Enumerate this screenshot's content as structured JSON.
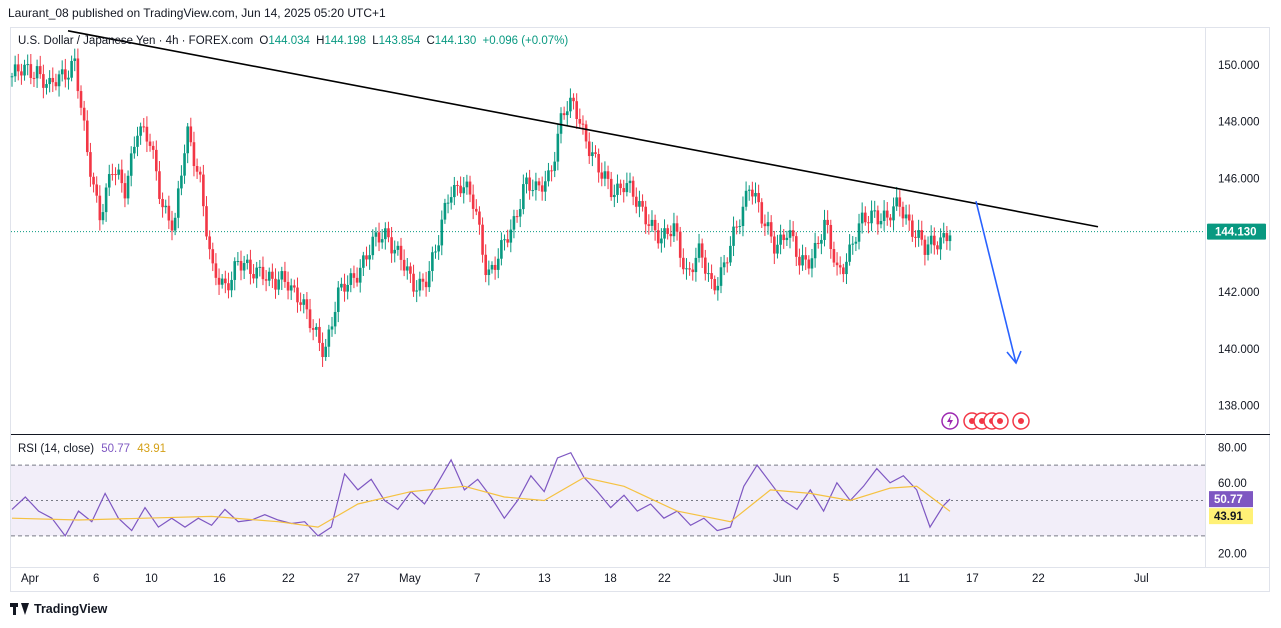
{
  "header": {
    "publisher_text": "Laurant_08 published on TradingView.com, Jun 14, 2025 05:20 UTC+1"
  },
  "symbol": {
    "name": "U.S. Dollar / Japanese Yen · 4h · FOREX.com",
    "o_label": "O",
    "o_value": "144.034",
    "h_label": "H",
    "h_value": "144.198",
    "l_label": "L",
    "l_value": "143.854",
    "c_label": "C",
    "c_value": "144.130",
    "change": "+0.096 (+0.07%)"
  },
  "rsi": {
    "name": "RSI (14, close)",
    "value": "50.77",
    "ma_value": "43.91"
  },
  "footer": {
    "brand": "TradingView"
  },
  "colors": {
    "up": "#089981",
    "down": "#f23645",
    "rsi": "#7e57c2",
    "rsi_ma": "#f5c242",
    "arrow": "#2962ff",
    "trendline": "#000000"
  },
  "chart_data": [
    {
      "type": "candlestick",
      "title": "U.S. Dollar / Japanese Yen · 4h · FOREX.com",
      "ylim": [
        137,
        151.3
      ],
      "y_ticks": [
        "150.000",
        "148.000",
        "146.000",
        "144.000",
        "142.000",
        "140.000",
        "138.000"
      ],
      "last_price_label": "144.130",
      "x_ticks": [
        "Apr",
        "6",
        "10",
        "16",
        "22",
        "27",
        "May",
        "7",
        "13",
        "18",
        "22",
        "Jun",
        "5",
        "11",
        "17",
        "22",
        "Jul"
      ],
      "price_path": [
        [
          0,
          149.6
        ],
        [
          2,
          149.9
        ],
        [
          3,
          149.1
        ],
        [
          5,
          150.2
        ],
        [
          6,
          146.8
        ],
        [
          7,
          144.8
        ],
        [
          8,
          146.3
        ],
        [
          9,
          145.5
        ],
        [
          10,
          147.9
        ],
        [
          11,
          147.2
        ],
        [
          12,
          145.2
        ],
        [
          13,
          144.3
        ],
        [
          14,
          147.6
        ],
        [
          15,
          146.2
        ],
        [
          16,
          142.6
        ],
        [
          17,
          142.2
        ],
        [
          18,
          143.1
        ],
        [
          19,
          142.6
        ],
        [
          20,
          142.9
        ],
        [
          21,
          142.2
        ],
        [
          22,
          142.4
        ],
        [
          23,
          141.9
        ],
        [
          24,
          140.6
        ],
        [
          25,
          140.0
        ],
        [
          26,
          141.8
        ],
        [
          27,
          142.3
        ],
        [
          28,
          143.1
        ],
        [
          29,
          143.7
        ],
        [
          30,
          144.1
        ],
        [
          31,
          143.3
        ],
        [
          32,
          142.1
        ],
        [
          33,
          142.5
        ],
        [
          34,
          143.5
        ],
        [
          35,
          145.6
        ],
        [
          36,
          145.9
        ],
        [
          37,
          144.9
        ],
        [
          38,
          142.7
        ],
        [
          39,
          143.3
        ],
        [
          40,
          144.2
        ],
        [
          41,
          146.0
        ],
        [
          42,
          145.4
        ],
        [
          43,
          146.2
        ],
        [
          44,
          148.3
        ],
        [
          45,
          148.5
        ],
        [
          46,
          147.4
        ],
        [
          47,
          146.1
        ],
        [
          48,
          145.6
        ],
        [
          49,
          145.9
        ],
        [
          50,
          145.0
        ],
        [
          51,
          144.6
        ],
        [
          52,
          143.7
        ],
        [
          53,
          144.3
        ],
        [
          54,
          142.6
        ],
        [
          55,
          143.3
        ],
        [
          56,
          142.3
        ],
        [
          57,
          142.9
        ],
        [
          58,
          144.3
        ],
        [
          59,
          146.0
        ],
        [
          60,
          144.4
        ],
        [
          61,
          143.7
        ],
        [
          62,
          144.2
        ],
        [
          63,
          142.9
        ],
        [
          64,
          143.4
        ],
        [
          65,
          144.3
        ],
        [
          66,
          142.7
        ],
        [
          67,
          143.5
        ],
        [
          68,
          144.4
        ],
        [
          69,
          144.9
        ],
        [
          70,
          144.5
        ],
        [
          71,
          145.1
        ],
        [
          72,
          144.3
        ],
        [
          73,
          143.4
        ],
        [
          74,
          143.9
        ],
        [
          75,
          144.13
        ]
      ],
      "trendline": {
        "from": [
          "Apr",
          151.2
        ],
        "to": [
          "Jun 22",
          144.3
        ]
      },
      "projection_arrow": {
        "from": [
          "Jun 17",
          145.2
        ],
        "to": [
          "Jun 19",
          139.5
        ]
      }
    },
    {
      "type": "line",
      "title": "RSI (14, close)",
      "ylim": [
        13,
        87
      ],
      "y_ticks": [
        "80.00",
        "60.00",
        "20.00"
      ],
      "bands": [
        70,
        50,
        30
      ],
      "rsi_path": [
        [
          0,
          45
        ],
        [
          2,
          52
        ],
        [
          4,
          44
        ],
        [
          6,
          40
        ],
        [
          8,
          30
        ],
        [
          10,
          44
        ],
        [
          12,
          38
        ],
        [
          14,
          54
        ],
        [
          16,
          40
        ],
        [
          18,
          33
        ],
        [
          20,
          46
        ],
        [
          22,
          35
        ],
        [
          24,
          40
        ],
        [
          26,
          35
        ],
        [
          28,
          40
        ],
        [
          30,
          36
        ],
        [
          32,
          45
        ],
        [
          34,
          38
        ],
        [
          36,
          39
        ],
        [
          38,
          42
        ],
        [
          40,
          39
        ],
        [
          42,
          37
        ],
        [
          44,
          38
        ],
        [
          46,
          30
        ],
        [
          48,
          35
        ],
        [
          50,
          65
        ],
        [
          52,
          56
        ],
        [
          54,
          62
        ],
        [
          56,
          50
        ],
        [
          58,
          45
        ],
        [
          60,
          55
        ],
        [
          62,
          48
        ],
        [
          64,
          60
        ],
        [
          66,
          73
        ],
        [
          68,
          56
        ],
        [
          70,
          62
        ],
        [
          72,
          52
        ],
        [
          74,
          40
        ],
        [
          76,
          50
        ],
        [
          78,
          64
        ],
        [
          80,
          55
        ],
        [
          82,
          74
        ],
        [
          84,
          77
        ],
        [
          86,
          63
        ],
        [
          88,
          55
        ],
        [
          90,
          46
        ],
        [
          92,
          53
        ],
        [
          94,
          44
        ],
        [
          96,
          48
        ],
        [
          98,
          40
        ],
        [
          100,
          44
        ],
        [
          102,
          36
        ],
        [
          104,
          40
        ],
        [
          106,
          33
        ],
        [
          108,
          35
        ],
        [
          110,
          58
        ],
        [
          112,
          70
        ],
        [
          114,
          60
        ],
        [
          116,
          50
        ],
        [
          118,
          45
        ],
        [
          120,
          56
        ],
        [
          122,
          44
        ],
        [
          124,
          60
        ],
        [
          126,
          50
        ],
        [
          128,
          58
        ],
        [
          130,
          68
        ],
        [
          132,
          60
        ],
        [
          134,
          64
        ],
        [
          136,
          56
        ],
        [
          138,
          35
        ],
        [
          140,
          47
        ],
        [
          141,
          50.77
        ]
      ],
      "rsi_ma_path": [
        [
          0,
          40
        ],
        [
          10,
          39
        ],
        [
          20,
          40
        ],
        [
          30,
          41
        ],
        [
          40,
          38
        ],
        [
          46,
          35
        ],
        [
          52,
          48
        ],
        [
          60,
          55
        ],
        [
          68,
          58
        ],
        [
          74,
          52
        ],
        [
          80,
          50
        ],
        [
          86,
          63
        ],
        [
          92,
          58
        ],
        [
          100,
          44
        ],
        [
          108,
          38
        ],
        [
          114,
          56
        ],
        [
          120,
          54
        ],
        [
          126,
          50
        ],
        [
          132,
          57
        ],
        [
          136,
          58
        ],
        [
          141,
          43.91
        ]
      ],
      "last_values": [
        "50.77",
        "43.91"
      ]
    }
  ]
}
